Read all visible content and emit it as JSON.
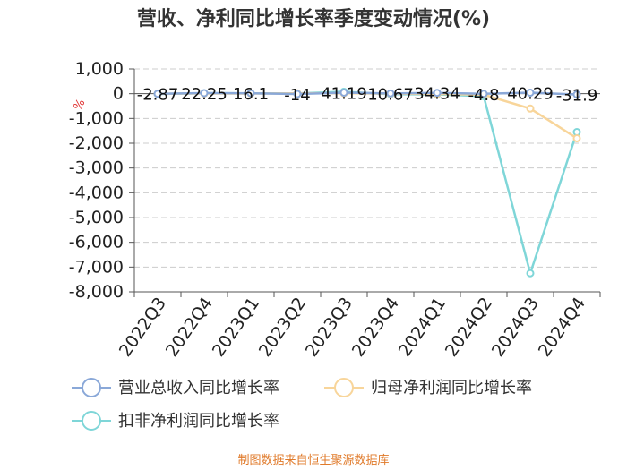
{
  "page": {
    "source": "制图数据来自恒生聚源数据库"
  },
  "chart_data": {
    "type": "line",
    "title": "营收、净利同比增长率季度变动情况(%)",
    "unit": "%",
    "categories": [
      "2022Q3",
      "2022Q4",
      "2023Q1",
      "2023Q2",
      "2023Q3",
      "2023Q4",
      "2024Q1",
      "2024Q2",
      "2024Q3",
      "2024Q4"
    ],
    "ylim": [
      -8000,
      1000
    ],
    "yticks": [
      1000,
      0,
      -1000,
      -2000,
      -3000,
      -4000,
      -5000,
      -6000,
      -7000,
      -8000
    ],
    "ytick_labels": [
      "1,000",
      "0",
      "-1,000",
      "-2,000",
      "-3,000",
      "-4,000",
      "-5,000",
      "-6,000",
      "-7,000",
      "-8,000"
    ],
    "grid": true,
    "legend_position": "bottom",
    "series": [
      {
        "name": "营业总收入同比增长率",
        "color": "#8aa8d8",
        "values": [
          -2.87,
          22.25,
          16.1,
          -14,
          41.19,
          10.67,
          34.34,
          -4.8,
          40.29,
          -31.9
        ],
        "labels": [
          "-2.87",
          "22.25",
          "16.1",
          "-14",
          "41.19",
          "10.67",
          "34.34",
          "-4.8",
          "40.29",
          "-31.9"
        ]
      },
      {
        "name": "归母净利润同比增长率",
        "color": "#f8d59a",
        "values": [
          -5,
          10,
          5,
          15,
          20,
          0,
          -10,
          -40,
          -600,
          -1800
        ]
      },
      {
        "name": "扣非净利润同比增长率",
        "color": "#7fd6d8",
        "values": [
          -10,
          20,
          15,
          10,
          80,
          -20,
          -30,
          -100,
          -7250,
          -1550
        ]
      }
    ]
  }
}
